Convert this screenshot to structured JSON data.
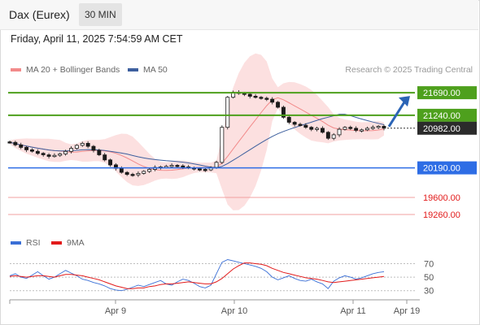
{
  "header": {
    "instrument": "Dax (Eurex)",
    "timeframe": "30 MIN"
  },
  "timestamp": "Friday, April 11, 2025 7:54:59 AM CET",
  "legend": {
    "ma20_label": "MA 20 + Bollinger Bands",
    "ma20_color": "#f28a8a",
    "ma50_label": "MA 50",
    "ma50_color": "#3d5f9e",
    "copyright": "Research © 2025 Trading Central"
  },
  "rsi_legend": {
    "rsi_label": "RSI",
    "rsi_color": "#3a6fd6",
    "ma9_label": "9MA",
    "ma9_color": "#e21b1b"
  },
  "chart_data": [
    {
      "type": "candlestick",
      "ylim": [
        19000,
        22000
      ],
      "last_price": 20982.0,
      "xticks": [
        "Apr 9",
        "Apr 10",
        "Apr 11",
        "Apr 19"
      ],
      "closes": [
        20700,
        20650,
        20600,
        20550,
        20520,
        20480,
        20450,
        20420,
        20440,
        20470,
        20520,
        20580,
        20640,
        20680,
        20620,
        20540,
        20450,
        20350,
        20250,
        20180,
        20100,
        20060,
        20050,
        20080,
        20120,
        20160,
        20200,
        20210,
        20220,
        20240,
        20230,
        20210,
        20190,
        20170,
        20160,
        20150,
        20200,
        20300,
        21000,
        21600,
        21700,
        21680,
        21660,
        21620,
        21600,
        21580,
        21560,
        21500,
        21400,
        21200,
        21100,
        21060,
        21040,
        21000,
        20960,
        20980,
        20900,
        20780,
        20850,
        20960,
        21000,
        20980,
        20940,
        20950,
        20980,
        21000,
        21020,
        20982
      ],
      "levels": {
        "resistance": [
          21690.0,
          21240.0
        ],
        "pivot": 20190.0,
        "support": [
          19600.0,
          19260.0
        ]
      },
      "level_labels": [
        "21690.00",
        "21240.00",
        "20982.00",
        "20190.00",
        "19600.00",
        "19260.00"
      ],
      "series": [
        {
          "name": "MA 20 + Bollinger Bands"
        },
        {
          "name": "MA 50"
        }
      ]
    },
    {
      "type": "line",
      "yticks": [
        70,
        50,
        30
      ],
      "ylim": [
        20,
        85
      ],
      "series": [
        {
          "name": "RSI",
          "values": [
            52,
            55,
            50,
            48,
            53,
            58,
            52,
            47,
            50,
            55,
            60,
            56,
            52,
            47,
            45,
            42,
            40,
            37,
            33,
            31,
            30,
            32,
            35,
            38,
            36,
            39,
            42,
            45,
            40,
            38,
            43,
            47,
            45,
            41,
            36,
            34,
            38,
            55,
            72,
            76,
            74,
            72,
            70,
            68,
            66,
            63,
            58,
            50,
            46,
            49,
            52,
            48,
            45,
            44,
            47,
            43,
            40,
            33,
            44,
            49,
            52,
            50,
            47,
            49,
            52,
            55,
            57,
            58
          ]
        },
        {
          "name": "9MA",
          "values": [
            51,
            52,
            51,
            50,
            51,
            52,
            52,
            51,
            50,
            52,
            54,
            54,
            53,
            52,
            50,
            48,
            46,
            43,
            40,
            37,
            35,
            33,
            33,
            34,
            34,
            36,
            37,
            39,
            40,
            40,
            41,
            42,
            43,
            42,
            41,
            40,
            40,
            43,
            48,
            55,
            62,
            67,
            71,
            71,
            70,
            69,
            67,
            63,
            60,
            57,
            55,
            53,
            51,
            49,
            48,
            47,
            45,
            43,
            42,
            43,
            44,
            45,
            46,
            47,
            48,
            49,
            50,
            51
          ]
        }
      ]
    }
  ]
}
